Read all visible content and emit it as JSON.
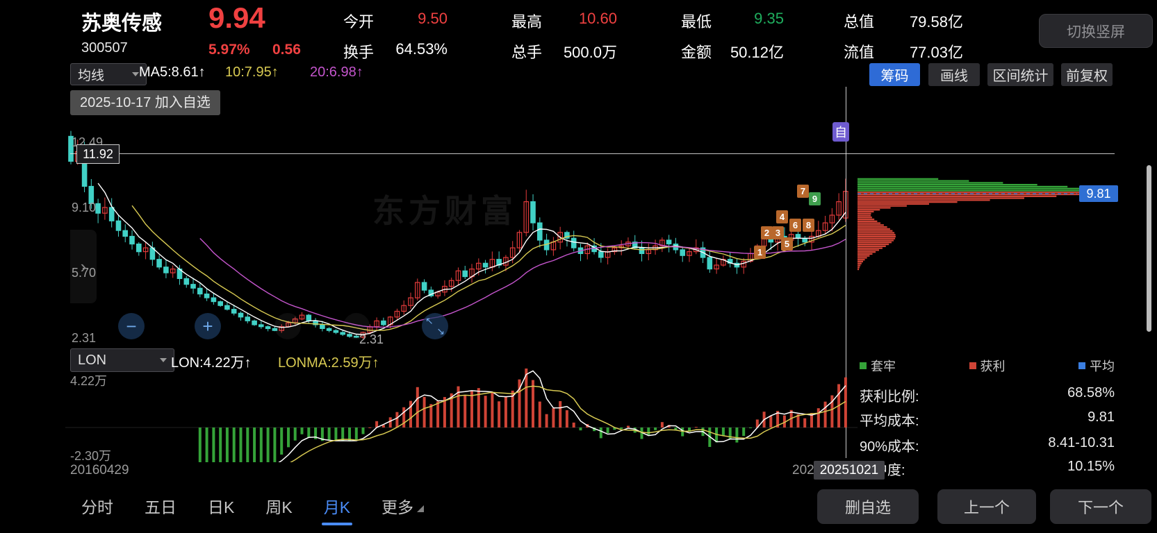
{
  "header": {
    "stock_name": "苏奥传感",
    "stock_code": "300507",
    "price": "9.94",
    "change_pct": "5.97%",
    "change_val": "0.56",
    "stats": [
      {
        "label": "今开",
        "value": "9.50"
      },
      {
        "label": "换手",
        "value": "64.53%"
      },
      {
        "label": "最高",
        "value": "10.60"
      },
      {
        "label": "总手",
        "value": "500.0万"
      },
      {
        "label": "最低",
        "value": "9.35"
      },
      {
        "label": "金额",
        "value": "50.12亿"
      },
      {
        "label": "总值",
        "value": "79.58亿"
      },
      {
        "label": "流值",
        "value": "77.03亿"
      }
    ],
    "rotate_button": "切换竖屏"
  },
  "toolbar": {
    "ma_selector": "均线",
    "ma5": "MA5:8.61↑",
    "ma10": "10:7.95↑",
    "ma20": "20:6.98↑",
    "buttons": {
      "chip": "筹码",
      "draw": "画线",
      "range": "区间统计",
      "adjust": "前复权"
    }
  },
  "chart": {
    "note": "2025-10-17 加入自选",
    "watermark": "东方财富",
    "y_labels": [
      "12.49",
      "9.10",
      "5.70",
      "2.31"
    ],
    "price_line_label": "11.92",
    "low_label": "2.31",
    "self_badge": "自"
  },
  "chip_panel": {
    "avg_label": "9.81",
    "legend": [
      {
        "label": "套牢"
      },
      {
        "label": "获利"
      },
      {
        "label": "平均"
      }
    ],
    "stats": [
      {
        "label": "获利比例:",
        "value": "68.58%"
      },
      {
        "label": "平均成本:",
        "value": "9.81"
      },
      {
        "label": "90%成本:",
        "value": "8.41-10.31"
      },
      {
        "label": "集中度:",
        "value": "10.15%"
      }
    ]
  },
  "subchart": {
    "selector": "LON",
    "lon_label": "LON:4.22万↑",
    "lonma_label": "LONMA:2.59万↑",
    "y_max": "4.22万",
    "y_min": "-2.30万",
    "x_left": "20160429",
    "x_partial": "202",
    "x_current": "20251021"
  },
  "tabbar": {
    "tabs": [
      "分时",
      "五日",
      "日K",
      "周K",
      "月K",
      "更多"
    ],
    "buttons": {
      "delete": "删自选",
      "prev": "上一个",
      "next": "下一个"
    }
  },
  "colors": {
    "red": "#f04141",
    "green": "#1fae5e",
    "white": "#ffffff",
    "yellow": "#d8ca52",
    "magenta": "#c455cc",
    "blue_accent": "#2e6bd6",
    "tab_active": "#4a8cf7",
    "candle_up": "#e23b3b",
    "candle_down": "#41d1c6",
    "chip_green": "#35a339",
    "chip_red": "#cf4436",
    "avg_blue": "#3b7ee0",
    "badge_orange": "#b9682c",
    "badge_green": "#3f9e4d",
    "self_purple": "#6f5bd0"
  },
  "chart_data": {
    "kline": {
      "type": "candlestick",
      "period": "monthly",
      "x_range": [
        "20160429",
        "20251021"
      ],
      "y_axis_labels": [
        12.49,
        9.1,
        5.7,
        2.31
      ],
      "marked_price_line": 11.92,
      "closes": [
        11.5,
        12.0,
        10.2,
        9.3,
        8.8,
        9.1,
        8.4,
        7.9,
        7.6,
        7.2,
        6.8,
        7.0,
        6.4,
        6.0,
        5.7,
        5.9,
        5.4,
        5.1,
        4.9,
        4.6,
        4.4,
        4.2,
        4.0,
        3.8,
        3.6,
        3.4,
        3.2,
        3.0,
        2.9,
        2.8,
        2.7,
        2.9,
        3.1,
        3.3,
        3.5,
        3.2,
        3.0,
        2.8,
        2.7,
        2.6,
        2.5,
        2.4,
        2.35,
        2.6,
        2.9,
        3.2,
        3.0,
        3.4,
        3.7,
        4.0,
        4.4,
        5.2,
        4.8,
        4.5,
        4.7,
        5.0,
        5.3,
        5.8,
        5.5,
        5.9,
        6.2,
        6.0,
        6.4,
        6.1,
        6.5,
        7.0,
        7.8,
        9.4,
        8.3,
        7.4,
        6.9,
        7.3,
        7.8,
        7.5,
        7.0,
        6.7,
        7.1,
        6.8,
        6.5,
        6.8,
        7.0,
        7.1,
        7.3,
        7.0,
        6.7,
        6.9,
        7.1,
        7.4,
        7.2,
        6.9,
        6.6,
        6.8,
        7.0,
        6.5,
        5.9,
        6.1,
        6.4,
        6.2,
        6.0,
        6.3,
        6.7,
        7.1,
        7.5,
        7.3,
        7.6,
        7.4,
        7.7,
        7.5,
        7.3,
        7.6,
        7.9,
        8.3,
        8.7,
        9.4,
        9.94
      ],
      "last_candle": {
        "o": 8.55,
        "h": 10.6,
        "l": 8.35,
        "c": 9.94
      }
    },
    "lon": {
      "type": "histogram_line",
      "y_max_wan": 4.22,
      "y_min_wan": -2.3,
      "scale": 1.7,
      "ma_period": 20,
      "lonma_period": 8
    },
    "chip": {
      "type": "volume_profile",
      "top": 10.58,
      "bottom": 5.6,
      "step": 0.1,
      "peak": 9.95,
      "sigma": 0.6,
      "amp": 350,
      "bump_center": 7.6,
      "bump_sigma": 0.95,
      "bump_amp": 55,
      "boundary": 9.94,
      "avg_price": 9.81
    },
    "markers": [
      {
        "n": "1",
        "x": 1085,
        "y": 354,
        "color": "badge_orange"
      },
      {
        "n": "2",
        "x": 1095,
        "y": 326,
        "color": "badge_orange"
      },
      {
        "n": "3",
        "x": 1111,
        "y": 326,
        "color": "badge_orange"
      },
      {
        "n": "4",
        "x": 1117,
        "y": 303,
        "color": "badge_orange"
      },
      {
        "n": "5",
        "x": 1124,
        "y": 342,
        "color": "badge_orange"
      },
      {
        "n": "6",
        "x": 1136,
        "y": 315,
        "color": "badge_orange"
      },
      {
        "n": "7",
        "x": 1147,
        "y": 266,
        "color": "badge_orange"
      },
      {
        "n": "8",
        "x": 1155,
        "y": 315,
        "color": "badge_orange"
      },
      {
        "n": "9",
        "x": 1164,
        "y": 277,
        "color": "badge_green"
      }
    ]
  }
}
